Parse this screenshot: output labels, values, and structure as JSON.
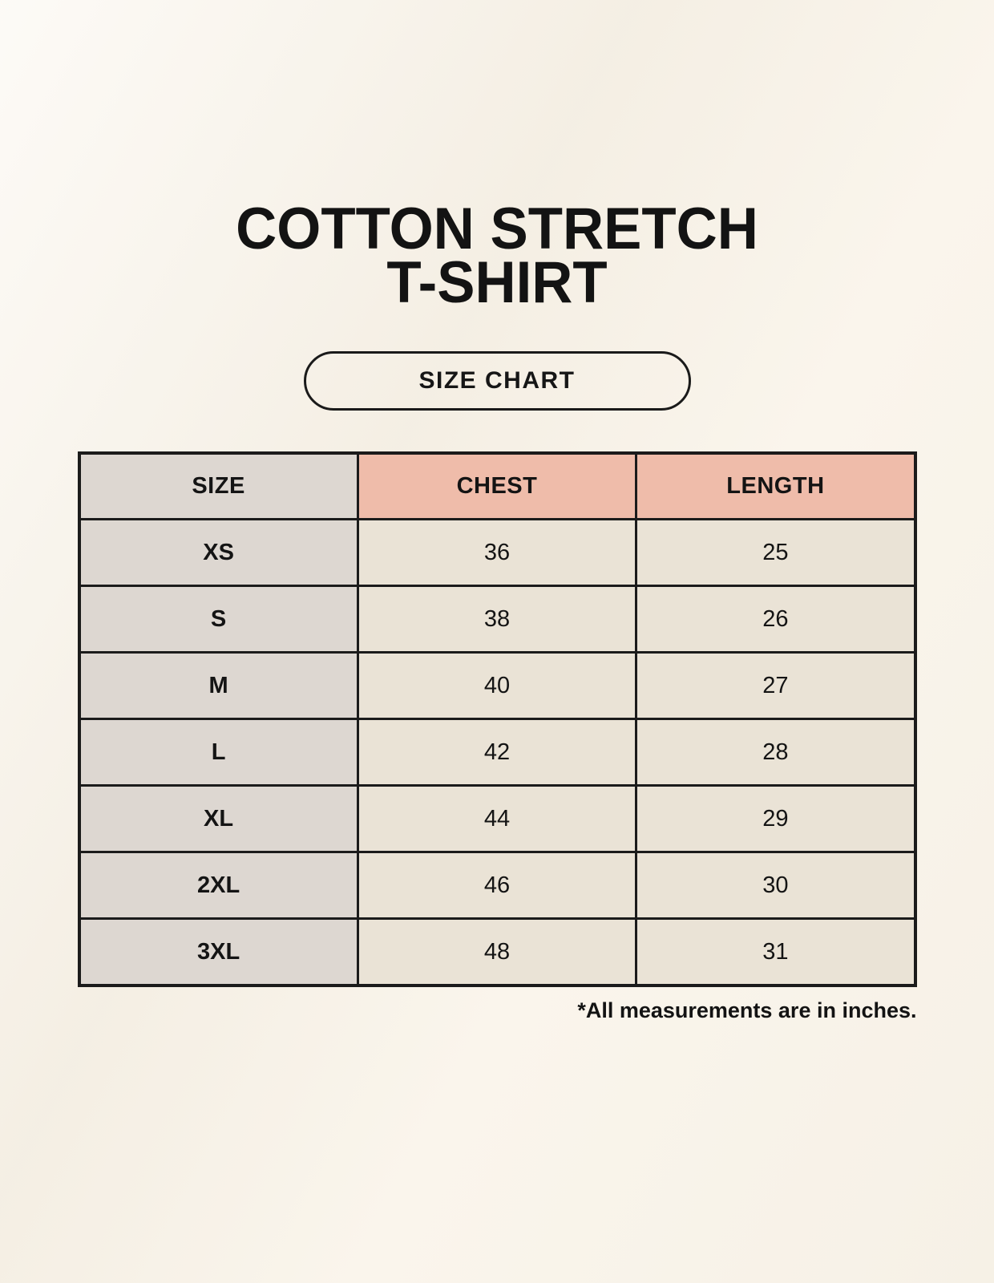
{
  "header": {
    "title_line1": "COTTON STRETCH",
    "title_line2": "T-SHIRT",
    "badge_label": "SIZE CHART"
  },
  "footnote": "*All measurements are in inches.",
  "colors": {
    "background": "#faf5ec",
    "cell_grey": "#ddd7d1",
    "cell_cream": "#eae3d6",
    "header_pink": "#efbcaa",
    "border_black": "#1b1b1b",
    "text_black": "#141414"
  },
  "chart_data": {
    "type": "table",
    "title": "COTTON STRETCH T-SHIRT — SIZE CHART",
    "columns": [
      "SIZE",
      "CHEST",
      "LENGTH"
    ],
    "rows": [
      {
        "size": "XS",
        "chest": "36",
        "length": "25"
      },
      {
        "size": "S",
        "chest": "38",
        "length": "26"
      },
      {
        "size": "M",
        "chest": "40",
        "length": "27"
      },
      {
        "size": "L",
        "chest": "42",
        "length": "28"
      },
      {
        "size": "XL",
        "chest": "44",
        "length": "29"
      },
      {
        "size": "2XL",
        "chest": "46",
        "length": "30"
      },
      {
        "size": "3XL",
        "chest": "48",
        "length": "31"
      }
    ],
    "units": "inches"
  }
}
